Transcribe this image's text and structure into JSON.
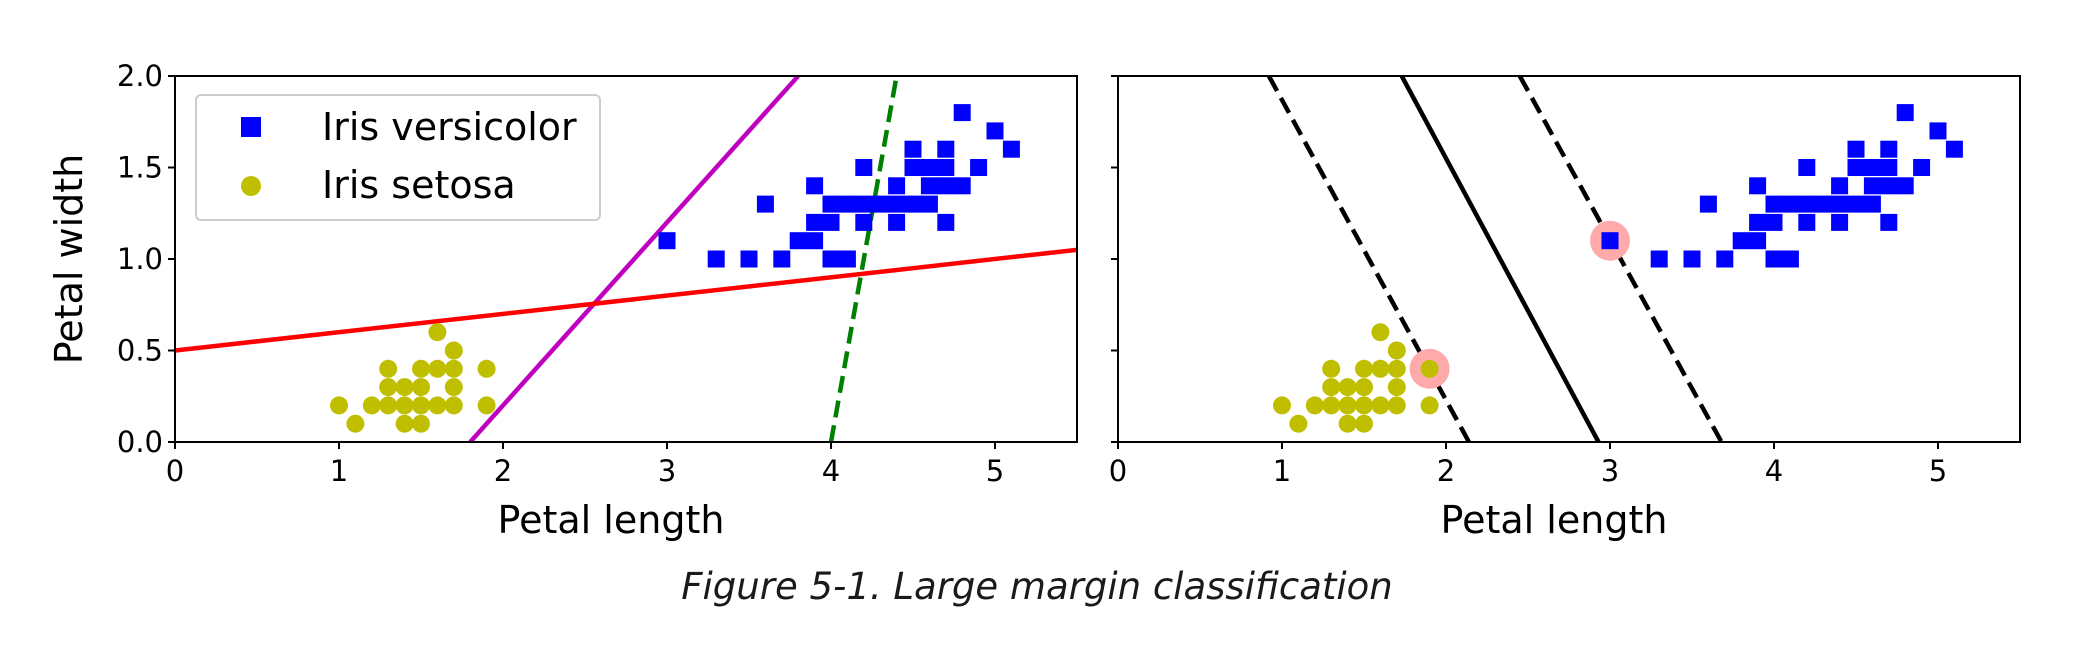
{
  "caption": "Figure 5-1. Large margin classification",
  "colors": {
    "versicolor": "#0000ff",
    "setosa": "#bfbf00",
    "line_red": "#ff0000",
    "line_magenta": "#bf00bf",
    "line_green_dashed": "#008000",
    "svm_line": "#000000",
    "support_vector_highlight": "#ffaaaa"
  },
  "chart_data": [
    {
      "type": "scatter",
      "xlabel": "Petal length",
      "ylabel": "Petal width",
      "xlim": [
        0,
        5.5
      ],
      "ylim": [
        0,
        2.0
      ],
      "xticks": [
        "0",
        "1",
        "2",
        "3",
        "4",
        "5"
      ],
      "yticks": [
        "0.0",
        "0.5",
        "1.0",
        "1.5",
        "2.0"
      ],
      "legend": {
        "placement": "upper-left",
        "entries": [
          "Iris versicolor",
          "Iris setosa"
        ]
      },
      "series": [
        {
          "name": "Iris versicolor",
          "marker": "square",
          "color": "#0000ff",
          "points": [
            [
              3.0,
              1.1
            ],
            [
              3.3,
              1.0
            ],
            [
              3.5,
              1.0
            ],
            [
              3.7,
              1.0
            ],
            [
              3.6,
              1.3
            ],
            [
              3.8,
              1.1
            ],
            [
              3.9,
              1.1
            ],
            [
              3.9,
              1.2
            ],
            [
              4.0,
              1.0
            ],
            [
              4.0,
              1.2
            ],
            [
              4.0,
              1.3
            ],
            [
              3.9,
              1.4
            ],
            [
              4.1,
              1.0
            ],
            [
              4.1,
              1.3
            ],
            [
              4.2,
              1.2
            ],
            [
              4.2,
              1.3
            ],
            [
              4.2,
              1.5
            ],
            [
              4.3,
              1.3
            ],
            [
              4.4,
              1.2
            ],
            [
              4.4,
              1.3
            ],
            [
              4.4,
              1.4
            ],
            [
              4.5,
              1.3
            ],
            [
              4.5,
              1.5
            ],
            [
              4.5,
              1.6
            ],
            [
              4.6,
              1.3
            ],
            [
              4.6,
              1.4
            ],
            [
              4.6,
              1.5
            ],
            [
              4.7,
              1.2
            ],
            [
              4.7,
              1.4
            ],
            [
              4.7,
              1.5
            ],
            [
              4.7,
              1.6
            ],
            [
              4.8,
              1.4
            ],
            [
              4.8,
              1.8
            ],
            [
              4.9,
              1.5
            ],
            [
              5.0,
              1.7
            ],
            [
              5.1,
              1.6
            ]
          ]
        },
        {
          "name": "Iris setosa",
          "marker": "circle",
          "color": "#bfbf00",
          "points": [
            [
              1.0,
              0.2
            ],
            [
              1.1,
              0.1
            ],
            [
              1.2,
              0.2
            ],
            [
              1.3,
              0.2
            ],
            [
              1.3,
              0.3
            ],
            [
              1.3,
              0.4
            ],
            [
              1.4,
              0.1
            ],
            [
              1.4,
              0.2
            ],
            [
              1.4,
              0.3
            ],
            [
              1.5,
              0.1
            ],
            [
              1.5,
              0.2
            ],
            [
              1.5,
              0.3
            ],
            [
              1.5,
              0.4
            ],
            [
              1.6,
              0.2
            ],
            [
              1.6,
              0.4
            ],
            [
              1.6,
              0.6
            ],
            [
              1.7,
              0.2
            ],
            [
              1.7,
              0.3
            ],
            [
              1.7,
              0.4
            ],
            [
              1.7,
              0.5
            ],
            [
              1.9,
              0.2
            ],
            [
              1.9,
              0.4
            ]
          ]
        }
      ],
      "lines": [
        {
          "color": "#008000",
          "style": "dashed",
          "points": [
            [
              4.0,
              0.0
            ],
            [
              4.4,
              2.0
            ]
          ]
        },
        {
          "color": "#bf00bf",
          "style": "solid",
          "points": [
            [
              1.8,
              0.0
            ],
            [
              3.8,
              2.0
            ]
          ]
        },
        {
          "color": "#ff0000",
          "style": "solid",
          "points": [
            [
              0.0,
              0.5
            ],
            [
              5.5,
              1.05
            ]
          ]
        }
      ]
    },
    {
      "type": "scatter",
      "xlabel": "Petal length",
      "ylabel": "",
      "xlim": [
        0,
        5.5
      ],
      "ylim": [
        0,
        2.0
      ],
      "xticks": [
        "0",
        "1",
        "2",
        "3",
        "4",
        "5"
      ],
      "series": [
        {
          "name": "Iris versicolor",
          "marker": "square",
          "color": "#0000ff",
          "points": [
            [
              3.0,
              1.1
            ],
            [
              3.3,
              1.0
            ],
            [
              3.5,
              1.0
            ],
            [
              3.7,
              1.0
            ],
            [
              3.6,
              1.3
            ],
            [
              3.8,
              1.1
            ],
            [
              3.9,
              1.1
            ],
            [
              3.9,
              1.2
            ],
            [
              4.0,
              1.0
            ],
            [
              4.0,
              1.2
            ],
            [
              4.0,
              1.3
            ],
            [
              3.9,
              1.4
            ],
            [
              4.1,
              1.0
            ],
            [
              4.1,
              1.3
            ],
            [
              4.2,
              1.2
            ],
            [
              4.2,
              1.3
            ],
            [
              4.2,
              1.5
            ],
            [
              4.3,
              1.3
            ],
            [
              4.4,
              1.2
            ],
            [
              4.4,
              1.3
            ],
            [
              4.4,
              1.4
            ],
            [
              4.5,
              1.3
            ],
            [
              4.5,
              1.5
            ],
            [
              4.5,
              1.6
            ],
            [
              4.6,
              1.3
            ],
            [
              4.6,
              1.4
            ],
            [
              4.6,
              1.5
            ],
            [
              4.7,
              1.2
            ],
            [
              4.7,
              1.4
            ],
            [
              4.7,
              1.5
            ],
            [
              4.7,
              1.6
            ],
            [
              4.8,
              1.4
            ],
            [
              4.8,
              1.8
            ],
            [
              4.9,
              1.5
            ],
            [
              5.0,
              1.7
            ],
            [
              5.1,
              1.6
            ]
          ]
        },
        {
          "name": "Iris setosa",
          "marker": "circle",
          "color": "#bfbf00",
          "points": [
            [
              1.0,
              0.2
            ],
            [
              1.1,
              0.1
            ],
            [
              1.2,
              0.2
            ],
            [
              1.3,
              0.2
            ],
            [
              1.3,
              0.3
            ],
            [
              1.3,
              0.4
            ],
            [
              1.4,
              0.1
            ],
            [
              1.4,
              0.2
            ],
            [
              1.4,
              0.3
            ],
            [
              1.5,
              0.1
            ],
            [
              1.5,
              0.2
            ],
            [
              1.5,
              0.3
            ],
            [
              1.5,
              0.4
            ],
            [
              1.6,
              0.2
            ],
            [
              1.6,
              0.4
            ],
            [
              1.6,
              0.6
            ],
            [
              1.7,
              0.2
            ],
            [
              1.7,
              0.3
            ],
            [
              1.7,
              0.4
            ],
            [
              1.7,
              0.5
            ],
            [
              1.9,
              0.2
            ],
            [
              1.9,
              0.4
            ]
          ]
        }
      ],
      "support_vectors": [
        [
          1.9,
          0.4
        ],
        [
          3.0,
          1.1
        ]
      ],
      "lines": [
        {
          "color": "#000000",
          "style": "solid",
          "points": [
            [
              1.73,
              2.0
            ],
            [
              2.93,
              0.0
            ]
          ]
        },
        {
          "color": "#000000",
          "style": "dashed",
          "points": [
            [
              0.92,
              2.0
            ],
            [
              2.14,
              0.0
            ]
          ]
        },
        {
          "color": "#000000",
          "style": "dashed",
          "points": [
            [
              2.45,
              2.0
            ],
            [
              3.68,
              0.0
            ]
          ]
        }
      ]
    }
  ]
}
